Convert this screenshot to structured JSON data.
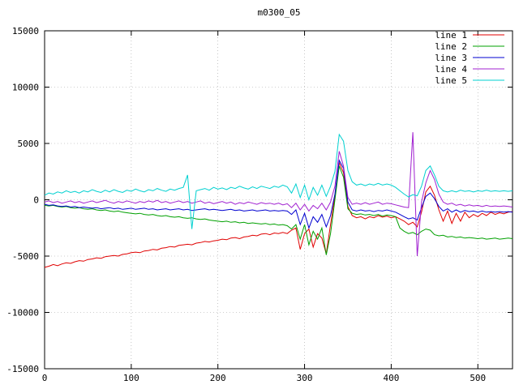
{
  "title": "m0300_05",
  "chart_data": {
    "type": "line",
    "title": "m0300_05",
    "xlabel": "",
    "ylabel": "",
    "xlim": [
      0,
      540
    ],
    "ylim": [
      -15000,
      15000
    ],
    "x_ticks": [
      0,
      100,
      200,
      300,
      400,
      500
    ],
    "y_ticks": [
      -15000,
      -10000,
      -5000,
      0,
      5000,
      10000,
      15000
    ],
    "grid": true,
    "grid_style": "dotted",
    "legend_position": "top-right",
    "x_start": 0,
    "x_step": 5,
    "series": [
      {
        "name": "line 1",
        "color": "#e00000",
        "values": [
          -6000,
          -5900,
          -5750,
          -5850,
          -5700,
          -5600,
          -5650,
          -5500,
          -5400,
          -5450,
          -5300,
          -5250,
          -5150,
          -5200,
          -5050,
          -5000,
          -4950,
          -5000,
          -4850,
          -4800,
          -4700,
          -4650,
          -4700,
          -4550,
          -4500,
          -4400,
          -4450,
          -4300,
          -4250,
          -4150,
          -4200,
          -4050,
          -4000,
          -3950,
          -4000,
          -3850,
          -3800,
          -3700,
          -3750,
          -3650,
          -3600,
          -3500,
          -3550,
          -3400,
          -3350,
          -3450,
          -3300,
          -3250,
          -3150,
          -3200,
          -3050,
          -3000,
          -3100,
          -2950,
          -3000,
          -2900,
          -3000,
          -2700,
          -2500,
          -4400,
          -3000,
          -2600,
          -4200,
          -3000,
          -3400,
          -4800,
          -2200,
          300,
          3300,
          2400,
          -600,
          -1400,
          -1600,
          -1500,
          -1700,
          -1500,
          -1600,
          -1400,
          -1550,
          -1450,
          -1600,
          -1500,
          -1700,
          -1900,
          -2200,
          -2000,
          -2400,
          -1100,
          700,
          1200,
          400,
          -900,
          -1900,
          -1000,
          -2100,
          -1200,
          -1900,
          -1100,
          -1600,
          -1300,
          -1500,
          -1200,
          -1400,
          -1100,
          -1300,
          -1150,
          -1250,
          -1100,
          -1050
        ]
      },
      {
        "name": "line 2",
        "color": "#00a000",
        "values": [
          -500,
          -550,
          -500,
          -600,
          -650,
          -600,
          -700,
          -750,
          -700,
          -800,
          -850,
          -800,
          -900,
          -950,
          -900,
          -1000,
          -1050,
          -1000,
          -1100,
          -1150,
          -1200,
          -1250,
          -1200,
          -1300,
          -1350,
          -1300,
          -1400,
          -1450,
          -1400,
          -1500,
          -1550,
          -1500,
          -1600,
          -1650,
          -1600,
          -1700,
          -1750,
          -1700,
          -1800,
          -1850,
          -1900,
          -1950,
          -1900,
          -2000,
          -1950,
          -2050,
          -2000,
          -2100,
          -2050,
          -2100,
          -2150,
          -2100,
          -2200,
          -2150,
          -2250,
          -2200,
          -2300,
          -2600,
          -2200,
          -3500,
          -2200,
          -4000,
          -2800,
          -3500,
          -2500,
          -4900,
          -3000,
          0,
          3000,
          2000,
          -800,
          -1200,
          -1300,
          -1250,
          -1350,
          -1300,
          -1400,
          -1300,
          -1450,
          -1350,
          -1400,
          -1500,
          -2500,
          -2800,
          -3000,
          -2900,
          -3100,
          -2800,
          -2600,
          -2700,
          -3100,
          -3200,
          -3150,
          -3300,
          -3250,
          -3350,
          -3300,
          -3400,
          -3350,
          -3400,
          -3450,
          -3400,
          -3500,
          -3450,
          -3400,
          -3500,
          -3450,
          -3400,
          -3450
        ]
      },
      {
        "name": "line 3",
        "color": "#0000d0",
        "values": [
          -400,
          -500,
          -450,
          -550,
          -600,
          -550,
          -650,
          -600,
          -700,
          -650,
          -700,
          -750,
          -700,
          -800,
          -750,
          -700,
          -800,
          -750,
          -850,
          -800,
          -750,
          -850,
          -800,
          -750,
          -850,
          -800,
          -900,
          -850,
          -800,
          -900,
          -850,
          -800,
          -900,
          -850,
          -950,
          -900,
          -850,
          -800,
          -900,
          -850,
          -900,
          -950,
          -900,
          -850,
          -950,
          -900,
          -1000,
          -950,
          -900,
          -1000,
          -950,
          -900,
          -1000,
          -950,
          -1000,
          -950,
          -1000,
          -1300,
          -900,
          -2200,
          -1200,
          -2500,
          -1500,
          -2000,
          -1300,
          -2400,
          -1400,
          500,
          3500,
          2800,
          -200,
          -900,
          -1000,
          -900,
          -1000,
          -950,
          -1050,
          -950,
          -1000,
          -900,
          -1000,
          -1100,
          -1300,
          -1500,
          -1700,
          -1600,
          -1800,
          -700,
          300,
          600,
          100,
          -600,
          -1000,
          -800,
          -1100,
          -900,
          -1100,
          -950,
          -1050,
          -1000,
          -1100,
          -1000,
          -1100,
          -1050,
          -1100,
          -1050,
          -1100,
          -1050,
          -1100
        ]
      },
      {
        "name": "line 4",
        "color": "#a020d0",
        "values": [
          -200,
          -100,
          -250,
          -150,
          -300,
          -200,
          -100,
          -250,
          -150,
          -300,
          -200,
          -100,
          -250,
          -150,
          -50,
          -200,
          -300,
          -150,
          -250,
          -100,
          -200,
          -300,
          -150,
          -250,
          -100,
          -200,
          -50,
          -250,
          -150,
          -300,
          -200,
          -100,
          -250,
          -150,
          -300,
          -200,
          -100,
          -300,
          -200,
          -350,
          -250,
          -150,
          -300,
          -200,
          -400,
          -250,
          -350,
          -200,
          -300,
          -400,
          -250,
          -350,
          -300,
          -400,
          -300,
          -450,
          -350,
          -700,
          -300,
          -900,
          -400,
          -1000,
          -500,
          -800,
          -300,
          -900,
          -200,
          1200,
          4300,
          3000,
          200,
          -400,
          -300,
          -400,
          -250,
          -400,
          -300,
          -200,
          -400,
          -300,
          -350,
          -450,
          -550,
          -650,
          -700,
          6000,
          -5000,
          -200,
          1500,
          2600,
          1800,
          500,
          -200,
          -400,
          -300,
          -500,
          -400,
          -550,
          -450,
          -550,
          -500,
          -600,
          -500,
          -600,
          -550,
          -600,
          -550,
          -600,
          -650
        ]
      },
      {
        "name": "line 5",
        "color": "#00d0d0",
        "values": [
          400,
          600,
          500,
          700,
          600,
          800,
          650,
          750,
          600,
          800,
          700,
          900,
          750,
          650,
          850,
          700,
          900,
          750,
          650,
          850,
          750,
          950,
          800,
          700,
          900,
          800,
          1000,
          850,
          750,
          950,
          850,
          1000,
          1100,
          2200,
          -2600,
          800,
          900,
          1000,
          850,
          1100,
          950,
          1050,
          900,
          1100,
          1000,
          1200,
          1050,
          950,
          1150,
          1000,
          1200,
          1100,
          1000,
          1200,
          1100,
          1300,
          1150,
          600,
          1400,
          200,
          1300,
          0,
          1100,
          400,
          1300,
          300,
          1200,
          2500,
          5800,
          5200,
          2600,
          1600,
          1300,
          1400,
          1250,
          1400,
          1300,
          1450,
          1300,
          1400,
          1300,
          1100,
          800,
          500,
          250,
          450,
          350,
          1200,
          2600,
          3000,
          2200,
          1200,
          800,
          700,
          800,
          700,
          850,
          750,
          800,
          700,
          800,
          750,
          850,
          750,
          800,
          750,
          800,
          750,
          800
        ]
      }
    ]
  }
}
